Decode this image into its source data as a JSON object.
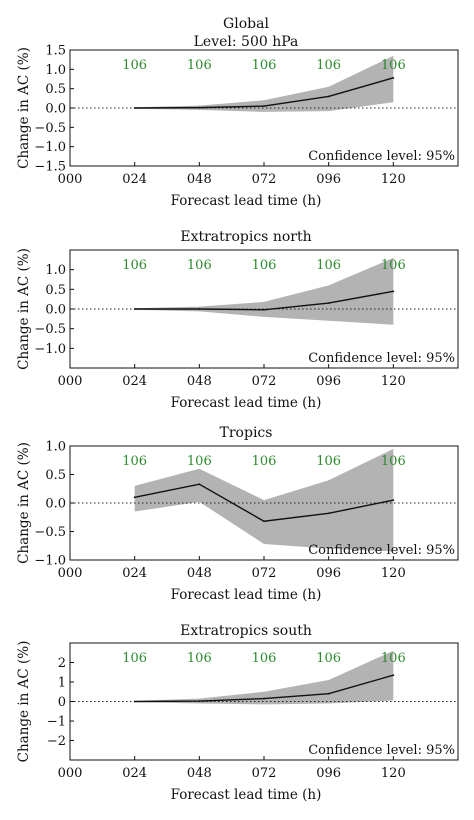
{
  "chart_data": [
    {
      "type": "line",
      "title": "Global",
      "subtitle": "Level: 500 hPa",
      "xlabel": "Forecast lead time (h)",
      "ylabel": "Change in AC (%)",
      "x_ticks": [
        "000",
        "024",
        "048",
        "072",
        "096",
        "120"
      ],
      "x": [
        24,
        48,
        72,
        96,
        120
      ],
      "xlim": [
        0,
        144
      ],
      "ylim": [
        -1.5,
        1.5
      ],
      "y_ticks": [
        "1.5",
        "1.0",
        "0.5",
        "0.0",
        "−0.5",
        "−1.0",
        "−1.5"
      ],
      "y_tick_values": [
        1.5,
        1.0,
        0.5,
        0.0,
        -0.5,
        -1.0,
        -1.5
      ],
      "series": [
        {
          "values": [
            0.0,
            0.01,
            0.05,
            0.3,
            0.78
          ],
          "lower": [
            -0.02,
            -0.05,
            -0.1,
            -0.08,
            0.15
          ],
          "upper": [
            0.02,
            0.06,
            0.2,
            0.55,
            1.35
          ]
        }
      ],
      "counts": [
        "106",
        "106",
        "106",
        "106",
        "106"
      ],
      "confidence_text": "Confidence level: 95%"
    },
    {
      "type": "line",
      "title": "Extratropics north",
      "xlabel": "Forecast lead time (h)",
      "ylabel": "Change in AC (%)",
      "x_ticks": [
        "000",
        "024",
        "048",
        "072",
        "096",
        "120"
      ],
      "x": [
        24,
        48,
        72,
        96,
        120
      ],
      "xlim": [
        0,
        144
      ],
      "ylim": [
        -1.5,
        1.5
      ],
      "y_ticks": [
        "1.0",
        "0.5",
        "0.0",
        "−0.5",
        "−1.0"
      ],
      "y_tick_values": [
        1.0,
        0.5,
        0.0,
        -0.5,
        -1.0
      ],
      "series": [
        {
          "values": [
            0.0,
            0.0,
            -0.02,
            0.15,
            0.45
          ],
          "lower": [
            -0.02,
            -0.06,
            -0.2,
            -0.3,
            -0.4
          ],
          "upper": [
            0.02,
            0.06,
            0.18,
            0.6,
            1.3
          ]
        }
      ],
      "counts": [
        "106",
        "106",
        "106",
        "106",
        "106"
      ],
      "confidence_text": "Confidence level: 95%"
    },
    {
      "type": "line",
      "title": "Tropics",
      "xlabel": "Forecast lead time (h)",
      "ylabel": "Change in AC (%)",
      "x_ticks": [
        "000",
        "024",
        "048",
        "072",
        "096",
        "120"
      ],
      "x": [
        24,
        48,
        72,
        96,
        120
      ],
      "xlim": [
        0,
        144
      ],
      "ylim": [
        -1.0,
        1.0
      ],
      "y_ticks": [
        "1.0",
        "0.5",
        "0.0",
        "−0.5",
        "−1.0"
      ],
      "y_tick_values": [
        1.0,
        0.5,
        0.0,
        -0.5,
        -1.0
      ],
      "series": [
        {
          "values": [
            0.1,
            0.33,
            -0.32,
            -0.18,
            0.05
          ],
          "lower": [
            -0.15,
            0.02,
            -0.72,
            -0.8,
            -0.85
          ],
          "upper": [
            0.3,
            0.6,
            0.05,
            0.4,
            0.95
          ]
        }
      ],
      "counts": [
        "106",
        "106",
        "106",
        "106",
        "106"
      ],
      "confidence_text": "Confidence level: 95%"
    },
    {
      "type": "line",
      "title": "Extratropics south",
      "xlabel": "Forecast lead time (h)",
      "ylabel": "Change in AC (%)",
      "x_ticks": [
        "000",
        "024",
        "048",
        "072",
        "096",
        "120"
      ],
      "x": [
        24,
        48,
        72,
        96,
        120
      ],
      "xlim": [
        0,
        144
      ],
      "ylim": [
        -3,
        3
      ],
      "y_ticks": [
        "2",
        "1",
        "0",
        "−1",
        "−2"
      ],
      "y_tick_values": [
        2,
        1,
        0,
        -1,
        -2
      ],
      "series": [
        {
          "values": [
            0.0,
            0.02,
            0.15,
            0.4,
            1.35
          ],
          "lower": [
            -0.03,
            -0.1,
            -0.15,
            -0.1,
            0.05
          ],
          "upper": [
            0.03,
            0.15,
            0.5,
            1.1,
            2.6
          ]
        }
      ],
      "counts": [
        "106",
        "106",
        "106",
        "106",
        "106"
      ],
      "confidence_text": "Confidence level: 95%"
    }
  ]
}
